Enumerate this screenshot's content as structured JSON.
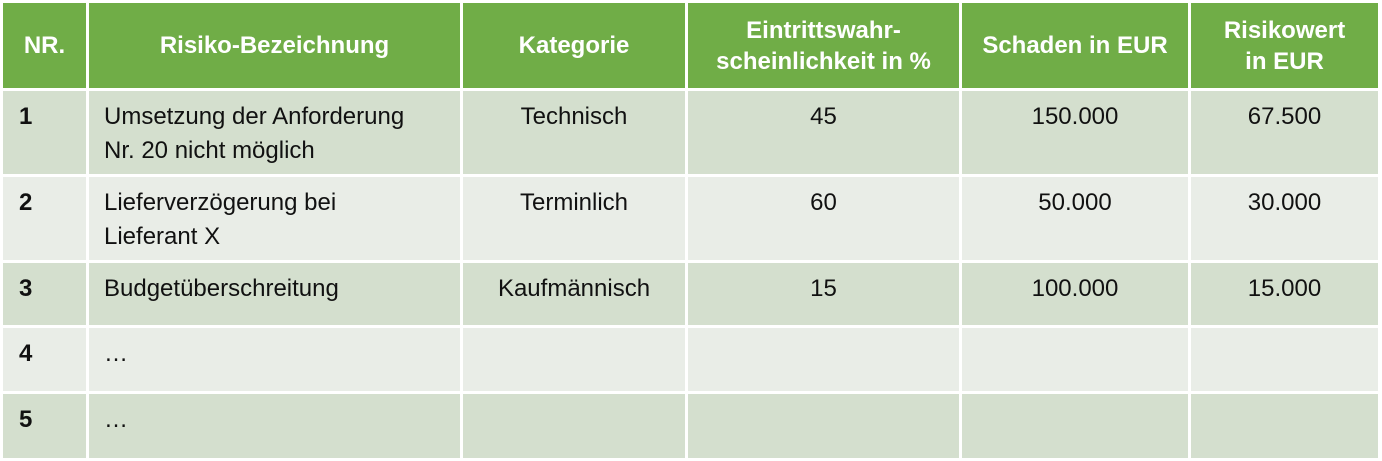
{
  "table": {
    "headers": {
      "nr": "NR.",
      "name": "Risiko-Bezeichnung",
      "category": "Kategorie",
      "probability_line1": "Eintrittswahr-",
      "probability_line2": "scheinlichkeit in %",
      "damage": "Schaden in EUR",
      "risk_line1": "Risikowert",
      "risk_line2": "in EUR"
    },
    "rows": [
      {
        "nr": "1",
        "name_line1": "Umsetzung der Anforderung",
        "name_line2": "Nr. 20 nicht möglich",
        "category": "Technisch",
        "probability": "45",
        "damage": "150.000",
        "risk": "67.500"
      },
      {
        "nr": "2",
        "name_line1": "Lieferverzögerung bei",
        "name_line2": "Lieferant X",
        "category": "Terminlich",
        "probability": "60",
        "damage": "50.000",
        "risk": "30.000"
      },
      {
        "nr": "3",
        "name_line1": "Budgetüberschreitung",
        "name_line2": "",
        "category": "Kaufmännisch",
        "probability": "15",
        "damage": "100.000",
        "risk": "15.000"
      },
      {
        "nr": "4",
        "name_line1": "…",
        "name_line2": "",
        "category": "",
        "probability": "",
        "damage": "",
        "risk": ""
      },
      {
        "nr": "5",
        "name_line1": "…",
        "name_line2": "",
        "category": "",
        "probability": "",
        "damage": "",
        "risk": ""
      }
    ]
  },
  "colors": {
    "header_background": "#70ad47",
    "header_text": "#ffffff",
    "row_odd_background": "#d4dfce",
    "row_even_background": "#e9ede7",
    "cell_border": "#ffffff"
  }
}
